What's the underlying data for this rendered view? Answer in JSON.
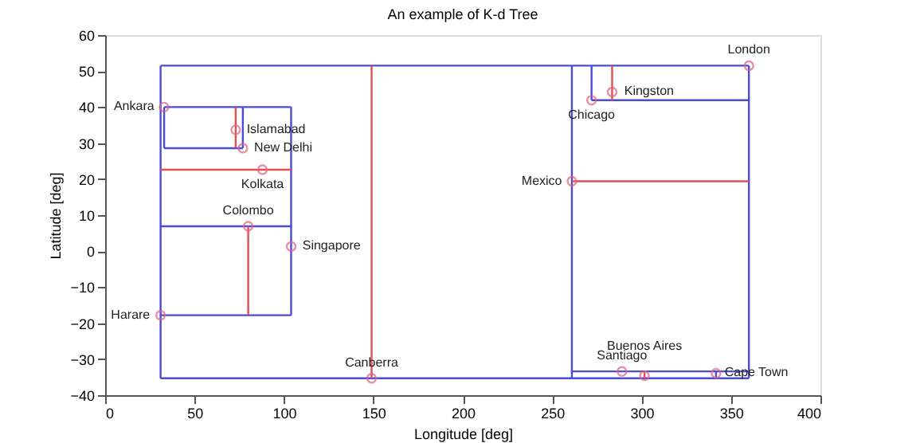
{
  "chart_data": {
    "type": "scatter",
    "title": "An example of K-d Tree",
    "xlabel": "Longitude [deg]",
    "ylabel": "Latitude [deg]",
    "xlim": [
      0,
      400
    ],
    "xticks": [
      0,
      50,
      100,
      150,
      200,
      250,
      300,
      350,
      400
    ],
    "ylim": [
      -40,
      60
    ],
    "yticks": [
      -40,
      -30,
      -20,
      -10,
      0,
      10,
      20,
      30,
      40,
      50,
      60
    ],
    "grid": false,
    "series": [
      {
        "type": "line",
        "color": "#4b4bd6",
        "x": [
          31,
          360
        ],
        "values": [
          51.5,
          51.5
        ]
      },
      {
        "type": "line",
        "color": "#4b4bd6",
        "x": [
          31,
          360
        ],
        "values": [
          -35.3,
          -35.3
        ]
      },
      {
        "type": "line",
        "color": "#4b4bd6",
        "x": [
          31,
          31
        ],
        "values": [
          -35.3,
          51.5
        ]
      },
      {
        "type": "line",
        "color": "#4b4bd6",
        "x": [
          360,
          360
        ],
        "values": [
          -35.3,
          51.5
        ]
      },
      {
        "type": "line",
        "color": "#e05050",
        "x": [
          149,
          149
        ],
        "values": [
          -35.3,
          51.5
        ]
      },
      {
        "type": "line",
        "color": "#4b4bd6",
        "x": [
          33,
          104
        ],
        "values": [
          40,
          40
        ]
      },
      {
        "type": "line",
        "color": "#4b4bd6",
        "x": [
          104,
          104
        ],
        "values": [
          -17.8,
          40
        ]
      },
      {
        "type": "line",
        "color": "#4b4bd6",
        "x": [
          31,
          104
        ],
        "values": [
          -17.8,
          -17.8
        ]
      },
      {
        "type": "line",
        "color": "#4b4bd6",
        "x": [
          33,
          33
        ],
        "values": [
          28.6,
          40
        ]
      },
      {
        "type": "line",
        "color": "#4b4bd6",
        "x": [
          33,
          77
        ],
        "values": [
          28.6,
          28.6
        ]
      },
      {
        "type": "line",
        "color": "#4b4bd6",
        "x": [
          77,
          77
        ],
        "values": [
          28.6,
          40
        ]
      },
      {
        "type": "line",
        "color": "#e05050",
        "x": [
          73,
          73
        ],
        "values": [
          28.6,
          40
        ]
      },
      {
        "type": "line",
        "color": "#e05050",
        "x": [
          31,
          104
        ],
        "values": [
          22.6,
          22.6
        ]
      },
      {
        "type": "line",
        "color": "#4b4bd6",
        "x": [
          31,
          104
        ],
        "values": [
          6.9,
          6.9
        ]
      },
      {
        "type": "line",
        "color": "#e05050",
        "x": [
          80,
          80
        ],
        "values": [
          -17.8,
          6.9
        ]
      },
      {
        "type": "line",
        "color": "#4b4bd6",
        "x": [
          261,
          261
        ],
        "values": [
          -35.3,
          51.5
        ]
      },
      {
        "type": "line",
        "color": "#e05050",
        "x": [
          261,
          360
        ],
        "values": [
          19.4,
          19.4
        ]
      },
      {
        "type": "line",
        "color": "#4b4bd6",
        "x": [
          272,
          272
        ],
        "values": [
          41.9,
          51.5
        ]
      },
      {
        "type": "line",
        "color": "#4b4bd6",
        "x": [
          272,
          360
        ],
        "values": [
          41.9,
          41.9
        ]
      },
      {
        "type": "line",
        "color": "#e05050",
        "x": [
          283.5,
          283.5
        ],
        "values": [
          41.9,
          51.5
        ]
      },
      {
        "type": "line",
        "color": "#4b4bd6",
        "x": [
          261,
          360
        ],
        "values": [
          -33.4,
          -33.4
        ]
      },
      {
        "type": "line",
        "color": "#e05050",
        "x": [
          301.6,
          301.6
        ],
        "values": [
          -35.3,
          -33.4
        ]
      },
      {
        "type": "line",
        "color": "#4b4bd6",
        "x": [
          341.6,
          341.6
        ],
        "values": [
          -35.3,
          -33.4
        ]
      },
      {
        "color": "#e06080",
        "marker": "circle",
        "x": [
          33,
          73,
          77,
          88,
          80,
          104,
          31,
          149,
          261,
          272,
          283.5,
          360,
          289,
          301.6,
          341.6
        ],
        "values": [
          40,
          33.7,
          28.6,
          22.6,
          6.9,
          1.3,
          -17.8,
          -35.3,
          19.4,
          41.9,
          44.2,
          51.5,
          -33.4,
          -34.6,
          -33.9
        ]
      }
    ],
    "annotations": [
      {
        "text": "Ankara",
        "x": 33,
        "y": 40
      },
      {
        "text": "Islamabad",
        "x": 73,
        "y": 33.7
      },
      {
        "text": "New Delhi",
        "x": 77,
        "y": 28.6
      },
      {
        "text": "Kolkata",
        "x": 88,
        "y": 22.6
      },
      {
        "text": "Colombo",
        "x": 80,
        "y": 6.9
      },
      {
        "text": "Singapore",
        "x": 104,
        "y": 1.3
      },
      {
        "text": "Harare",
        "x": 31,
        "y": -17.8
      },
      {
        "text": "Canberra",
        "x": 149,
        "y": -35.3
      },
      {
        "text": "Mexico",
        "x": 261,
        "y": 19.4
      },
      {
        "text": "Chicago",
        "x": 272,
        "y": 41.9
      },
      {
        "text": "Kingston",
        "x": 283.5,
        "y": 44.2
      },
      {
        "text": "London",
        "x": 360,
        "y": 51.5
      },
      {
        "text": "Santiago",
        "x": 289,
        "y": -33.4
      },
      {
        "text": "Buenos Aires",
        "x": 301.6,
        "y": -34.6
      },
      {
        "text": "Cape Town",
        "x": 341.6,
        "y": -33.9
      }
    ]
  }
}
